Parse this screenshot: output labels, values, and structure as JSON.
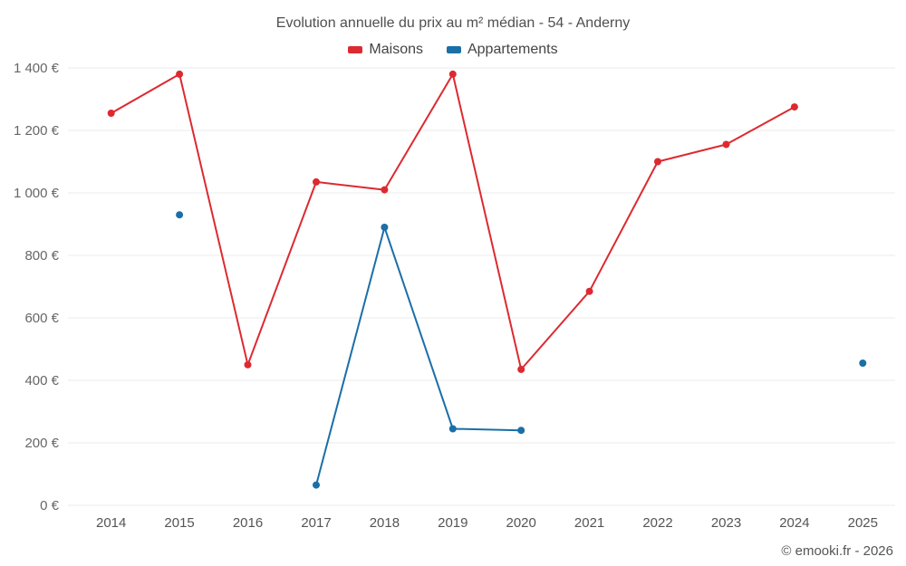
{
  "footer": "© emooki.fr - 2026",
  "chart_data": {
    "type": "line",
    "title": "Evolution annuelle du prix au m² médian - 54 - Anderny",
    "x": [
      "2014",
      "2015",
      "2016",
      "2017",
      "2018",
      "2019",
      "2020",
      "2021",
      "2022",
      "2023",
      "2024",
      "2025"
    ],
    "series": [
      {
        "name": "Maisons",
        "color": "#dc2a30",
        "values": [
          1255,
          1380,
          450,
          1035,
          1010,
          1380,
          435,
          685,
          1100,
          1155,
          1275,
          null
        ]
      },
      {
        "name": "Appartements",
        "color": "#1a6fa8",
        "values": [
          null,
          930,
          null,
          65,
          890,
          245,
          240,
          null,
          null,
          null,
          null,
          455
        ]
      }
    ],
    "ylim": [
      0,
      1400
    ],
    "ytick_step": 200,
    "ytick_suffix": " €",
    "xlabel": "",
    "ylabel": "",
    "legend_position": "top",
    "grid": "horizontal",
    "grid_color": "#ebebeb",
    "background_color": "#ffffff"
  }
}
